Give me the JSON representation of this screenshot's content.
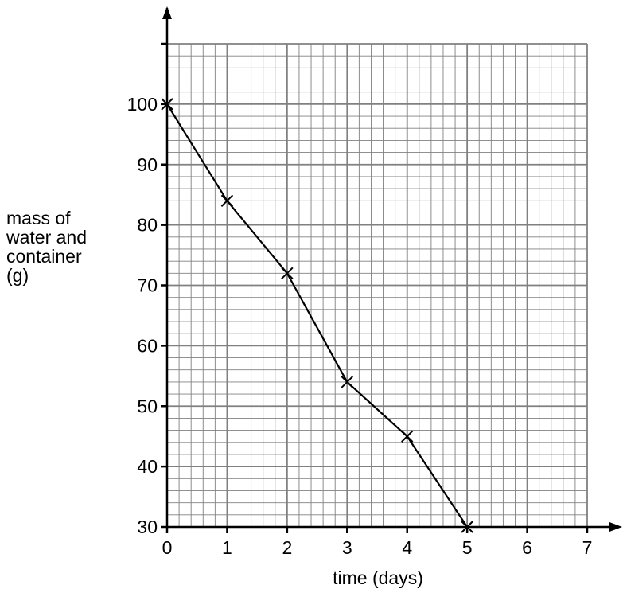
{
  "chart_data": {
    "type": "line",
    "title": "",
    "xlabel": "time (days)",
    "ylabel": [
      "mass of",
      "water and",
      "container",
      "(g)"
    ],
    "x": [
      0,
      1,
      2,
      3,
      4,
      5
    ],
    "y": [
      100,
      84,
      72,
      54,
      45,
      30
    ],
    "x_ticks": [
      "0",
      "1",
      "2",
      "3",
      "4",
      "5",
      "6",
      "7"
    ],
    "y_ticks": [
      "30",
      "40",
      "50",
      "60",
      "70",
      "80",
      "90",
      "100"
    ],
    "xlim": [
      0,
      7
    ],
    "ylim": [
      30,
      110
    ],
    "grid": true,
    "marker": "cross",
    "line_color": "#000000",
    "grid_color": "#808080"
  }
}
